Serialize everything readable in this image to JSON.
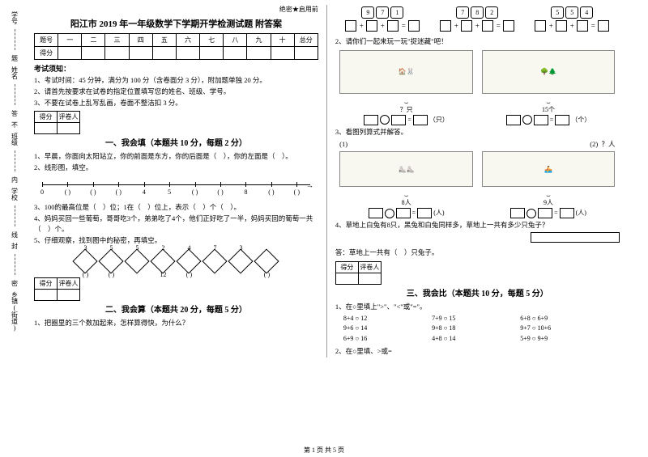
{
  "sidebar": {
    "l1": "学号",
    "l2": "姓名",
    "l3": "班级",
    "l4": "学校",
    "l5": "乡镇(街道)",
    "note1": "考",
    "note2": "内",
    "note3": "线",
    "note4": "封",
    "note5": "密",
    "note6": "不",
    "note7": "答",
    "note8": "题"
  },
  "header_mark": "绝密★启用前",
  "title": "阳江市 2019 年一年级数学下学期开学检测试题 附答案",
  "score_labels": [
    "题号",
    "一",
    "二",
    "三",
    "四",
    "五",
    "六",
    "七",
    "八",
    "九",
    "十",
    "总分"
  ],
  "score_row": "得分",
  "exam_hdr": "考试须知：",
  "exam_rules": [
    "1、考试时间：45 分钟，满分为 100 分（含卷面分 3 分），附加题单独 20 分。",
    "2、请首先按要求在试卷的指定位置填写您的姓名、班级、学号。",
    "3、不要在试卷上乱写乱画，卷面不整洁扣 3 分。"
  ],
  "mini_head": [
    "得分",
    "评卷人"
  ],
  "sec1_title": "一、我会填（本题共 10 分，每题 2 分）",
  "q1_1": "1、早晨，你面向太阳站立，你的前面是东方，你的后面是（　），你的左面是（　）。",
  "q1_2": "2、线形图，填空。",
  "q1_3": "3、100的最高位是（　）位；1在（　）位上，表示（　）个（　）。",
  "q1_4": "4、妈妈买回一些葡萄，哥哥吃3个，弟弟吃了4个，他们正好吃了一半，妈妈买回的葡萄一共",
  "q1_4b": "（　）个。",
  "q1_5": "5、仔细观察，找到图中的秘密，再填空。",
  "numline_ticks": [
    0,
    1,
    2,
    3,
    4,
    5,
    6,
    7,
    8,
    9,
    10
  ],
  "numline_labels": [
    "0",
    "",
    "",
    "",
    "4",
    "5",
    "",
    "",
    "8",
    "",
    ""
  ],
  "diamonds": {
    "top": [
      "3",
      "5",
      "5",
      "2",
      "4",
      "7",
      "3",
      ""
    ],
    "left": [
      "",
      "",
      "",
      "",
      "",
      "",
      "",
      ""
    ],
    "right": [
      "",
      "",
      "",
      "",
      "",
      "",
      "",
      ""
    ],
    "bottom": [
      "( )",
      "( )",
      "",
      "12",
      "( )",
      "",
      "",
      "( )"
    ]
  },
  "sec2_title": "二、我会算（本题共 20 分，每题 5 分）",
  "q2_1": "1、把圈里的三个数加起来，怎样算得快，为什么？",
  "cards": [
    [
      "9",
      "7",
      "1"
    ],
    [
      "7",
      "8",
      "2"
    ],
    [
      "5",
      "5",
      "4"
    ]
  ],
  "q2_2": "2、请你们一起来玩一玩\"捉迷藏\"吧！",
  "brace_l": "？只",
  "brace_r": "15个",
  "unit_l": "（只）",
  "unit_r": "（个）",
  "q2_3": "3、看图列算式并解答。",
  "sub_l": "(1)",
  "sub_r": "(2)",
  "sub_q": "？人",
  "sub_lnum": "8人",
  "sub_rnum": "9人",
  "sub_unit": "(人)",
  "q2_4": "4、草地上白兔有8只，黑兔和白兔同样多，草地上一共有多少只兔子？",
  "q2_4ans": "答：草地上一共有（　）只兔子。",
  "sec3_title": "三、我会比（本题共 10 分，每题 5 分）",
  "q3_1": "1、在○里填上\">\"、\"<\"或\"=\"。",
  "cmp": [
    "8+4 ○ 12",
    "7+9 ○ 15",
    "6+8 ○ 6+9",
    "9+6 ○ 14",
    "9+8 ○ 18",
    "9+7 ○ 10+6",
    "6+9 ○ 16",
    "4+8 ○ 14",
    "5+9 ○ 9+9"
  ],
  "q3_2": "2、在○里填、>或=",
  "footer": "第 1 页 共 5 页"
}
